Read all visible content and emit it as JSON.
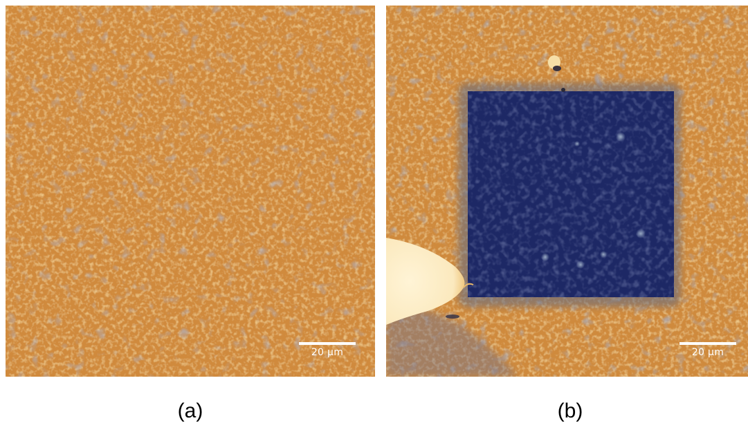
{
  "figure": {
    "panels": [
      {
        "id": "a",
        "caption": "(a)",
        "scale_bar_label": "20 µm",
        "description_colors": {
          "base": "#d18a3a",
          "dark": "#7a6a6e",
          "bright": "#f0b656"
        }
      },
      {
        "id": "b",
        "caption": "(b)",
        "scale_bar_label": "20 µm",
        "description_colors": {
          "base": "#cf8a3b",
          "square": "#1f2a66",
          "bright": "#fbeecb"
        }
      }
    ]
  }
}
